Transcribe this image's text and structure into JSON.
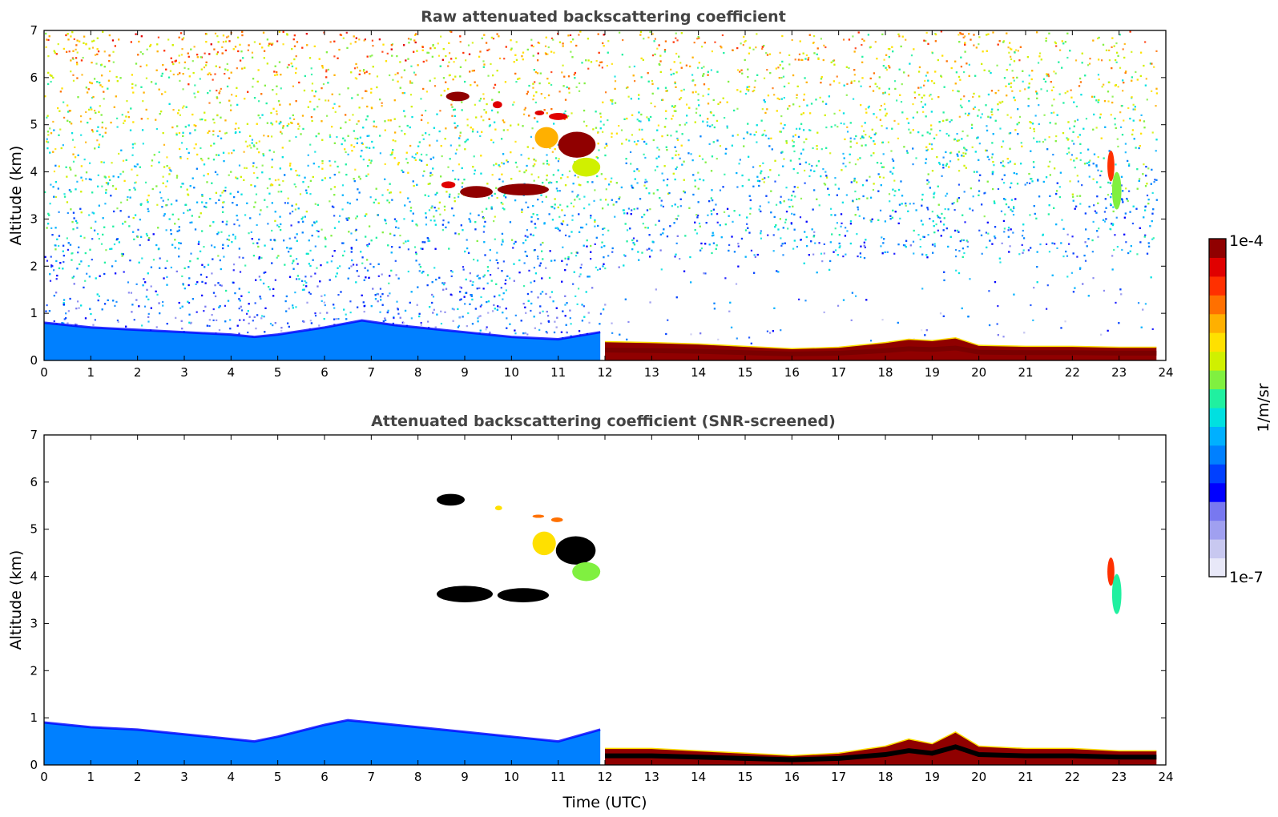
{
  "chart_data": [
    {
      "type": "heatmap",
      "title": "Raw attenuated backscattering coefficient",
      "xlabel": "",
      "ylabel": "Altitude (km)",
      "xlim": [
        0,
        24
      ],
      "ylim": [
        0,
        7
      ],
      "xticks": [
        "0",
        "1",
        "2",
        "3",
        "4",
        "5",
        "6",
        "7",
        "8",
        "9",
        "10",
        "11",
        "12",
        "13",
        "14",
        "15",
        "16",
        "17",
        "18",
        "19",
        "20",
        "21",
        "22",
        "23",
        "24"
      ],
      "yticks": [
        "0",
        "1",
        "2",
        "3",
        "4",
        "5",
        "6",
        "7"
      ],
      "background_noise": true,
      "layers": [
        {
          "name": "boundary_layer_morning",
          "x": [
            0,
            1,
            2,
            3,
            4,
            4.5,
            5,
            6,
            6.8,
            7.5,
            8,
            9,
            10,
            11,
            11.9
          ],
          "top_km": [
            0.8,
            0.7,
            0.65,
            0.6,
            0.55,
            0.5,
            0.55,
            0.7,
            0.85,
            0.75,
            0.7,
            0.6,
            0.5,
            0.45,
            0.6
          ],
          "level": 0.35
        },
        {
          "name": "aerosol_layer_afternoon",
          "x": [
            12,
            13,
            14,
            15,
            16,
            17,
            18,
            18.5,
            19,
            19.5,
            20,
            21,
            22,
            23,
            23.8
          ],
          "top_km": [
            0.4,
            0.38,
            0.35,
            0.3,
            0.25,
            0.28,
            0.38,
            0.45,
            0.42,
            0.48,
            0.32,
            0.3,
            0.3,
            0.28,
            0.28
          ],
          "level": 0.97
        }
      ],
      "clouds": [
        {
          "x": [
            8.6,
            9.1
          ],
          "alt_km": [
            5.5,
            5.7
          ],
          "level": 0.95
        },
        {
          "x": [
            9.6,
            9.8
          ],
          "alt_km": [
            5.35,
            5.5
          ],
          "level": 0.92
        },
        {
          "x": [
            10.5,
            10.7
          ],
          "alt_km": [
            5.2,
            5.3
          ],
          "level": 0.93
        },
        {
          "x": [
            10.8,
            11.2
          ],
          "alt_km": [
            5.1,
            5.25
          ],
          "level": 0.93
        },
        {
          "x": [
            10.5,
            11.0
          ],
          "alt_km": [
            4.5,
            4.95
          ],
          "level": 0.75
        },
        {
          "x": [
            11.0,
            11.8
          ],
          "alt_km": [
            4.3,
            4.85
          ],
          "level": 0.97
        },
        {
          "x": [
            11.3,
            11.9
          ],
          "alt_km": [
            3.9,
            4.3
          ],
          "level": 0.62
        },
        {
          "x": [
            8.5,
            8.8
          ],
          "alt_km": [
            3.65,
            3.8
          ],
          "level": 0.94
        },
        {
          "x": [
            8.9,
            9.6
          ],
          "alt_km": [
            3.45,
            3.7
          ],
          "level": 0.97
        },
        {
          "x": [
            9.7,
            10.8
          ],
          "alt_km": [
            3.5,
            3.75
          ],
          "level": 0.97
        },
        {
          "x": [
            22.75,
            22.9
          ],
          "alt_km": [
            3.8,
            4.45
          ],
          "level": 0.85
        },
        {
          "x": [
            22.85,
            23.05
          ],
          "alt_km": [
            3.2,
            4.0
          ],
          "level": 0.6
        }
      ]
    },
    {
      "type": "heatmap",
      "title": "Attenuated backscattering coefficient (SNR-screened)",
      "xlabel": "Time (UTC)",
      "ylabel": "Altitude (km)",
      "xlim": [
        0,
        24
      ],
      "ylim": [
        0,
        7
      ],
      "xticks": [
        "0",
        "1",
        "2",
        "3",
        "4",
        "5",
        "6",
        "7",
        "8",
        "9",
        "10",
        "11",
        "12",
        "13",
        "14",
        "15",
        "16",
        "17",
        "18",
        "19",
        "20",
        "21",
        "22",
        "23",
        "24"
      ],
      "yticks": [
        "0",
        "1",
        "2",
        "3",
        "4",
        "5",
        "6",
        "7"
      ],
      "background_noise": false,
      "layers": [
        {
          "name": "boundary_layer_morning",
          "x": [
            0,
            1,
            2,
            3,
            4,
            4.5,
            5,
            6,
            6.5,
            7,
            8,
            9,
            10,
            11,
            11.9
          ],
          "top_km": [
            0.9,
            0.8,
            0.75,
            0.65,
            0.55,
            0.5,
            0.6,
            0.85,
            0.95,
            0.9,
            0.8,
            0.7,
            0.6,
            0.5,
            0.75
          ],
          "level": 0.35
        },
        {
          "name": "aerosol_layer_afternoon",
          "x": [
            12,
            13,
            14,
            15,
            16,
            17,
            18,
            18.5,
            19,
            19.5,
            20,
            21,
            22,
            23,
            23.8
          ],
          "top_km": [
            0.35,
            0.35,
            0.3,
            0.25,
            0.2,
            0.25,
            0.4,
            0.55,
            0.45,
            0.7,
            0.4,
            0.35,
            0.35,
            0.3,
            0.3
          ],
          "level": 1.0
        }
      ],
      "clouds": [
        {
          "x": [
            8.4,
            9.0
          ],
          "alt_km": [
            5.5,
            5.75
          ],
          "level": 1.0
        },
        {
          "x": [
            9.65,
            9.8
          ],
          "alt_km": [
            5.4,
            5.5
          ],
          "level": 0.7
        },
        {
          "x": [
            10.45,
            10.7
          ],
          "alt_km": [
            5.25,
            5.3
          ],
          "level": 0.8
        },
        {
          "x": [
            10.85,
            11.1
          ],
          "alt_km": [
            5.15,
            5.25
          ],
          "level": 0.8
        },
        {
          "x": [
            10.45,
            10.95
          ],
          "alt_km": [
            4.45,
            4.95
          ],
          "level": 0.72
        },
        {
          "x": [
            10.95,
            11.8
          ],
          "alt_km": [
            4.25,
            4.85
          ],
          "level": 1.0
        },
        {
          "x": [
            11.3,
            11.9
          ],
          "alt_km": [
            3.9,
            4.3
          ],
          "level": 0.58
        },
        {
          "x": [
            8.4,
            9.6
          ],
          "alt_km": [
            3.45,
            3.8
          ],
          "level": 1.0
        },
        {
          "x": [
            9.7,
            10.8
          ],
          "alt_km": [
            3.45,
            3.75
          ],
          "level": 1.0
        },
        {
          "x": [
            22.75,
            22.9
          ],
          "alt_km": [
            3.8,
            4.4
          ],
          "level": 0.85
        },
        {
          "x": [
            22.85,
            23.05
          ],
          "alt_km": [
            3.2,
            4.05
          ],
          "level": 0.55
        }
      ]
    }
  ],
  "colorbar": {
    "label": "1/m/sr",
    "max_label": "1e-4",
    "min_label": "1e-7",
    "colors": [
      "#e8e8f8",
      "#c8c8f0",
      "#a0a0f0",
      "#7878f0",
      "#0000ff",
      "#0040ff",
      "#0080ff",
      "#00b0ff",
      "#00e0e0",
      "#20f0a0",
      "#80f040",
      "#d0f000",
      "#ffe000",
      "#ffb000",
      "#ff7000",
      "#ff3000",
      "#e00000",
      "#900000"
    ]
  }
}
